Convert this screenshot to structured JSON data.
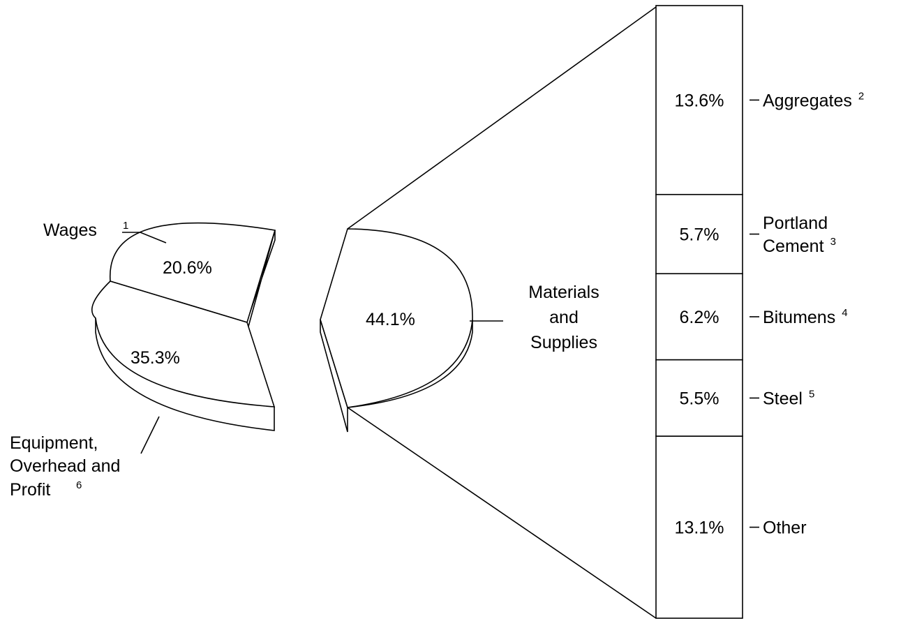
{
  "chart_data": {
    "type": "pie",
    "pie": {
      "slices": [
        {
          "label": "Wages",
          "footnote": "1",
          "value": 20.6,
          "value_text": "20.6%"
        },
        {
          "label_lines": [
            "Equipment,",
            "Overhead and",
            "Profit"
          ],
          "footnote": "6",
          "value": 35.3,
          "value_text": "35.3%"
        },
        {
          "label_lines": [
            "Materials",
            "and",
            "Supplies"
          ],
          "value": 44.1,
          "value_text": "44.1%",
          "exploded": true
        }
      ]
    },
    "breakdown": {
      "of": "Materials and Supplies",
      "segments": [
        {
          "label_lines": [
            "Aggregates"
          ],
          "footnote": "2",
          "value": 13.6,
          "value_text": "13.6%"
        },
        {
          "label_lines": [
            "Portland",
            "Cement"
          ],
          "footnote": "3",
          "value": 5.7,
          "value_text": "5.7%"
        },
        {
          "label_lines": [
            "Bitumens"
          ],
          "footnote": "4",
          "value": 6.2,
          "value_text": "6.2%"
        },
        {
          "label_lines": [
            "Steel"
          ],
          "footnote": "5",
          "value": 5.5,
          "value_text": "5.5%"
        },
        {
          "label_lines": [
            "Other"
          ],
          "value": 13.1,
          "value_text": "13.1%"
        }
      ]
    }
  }
}
